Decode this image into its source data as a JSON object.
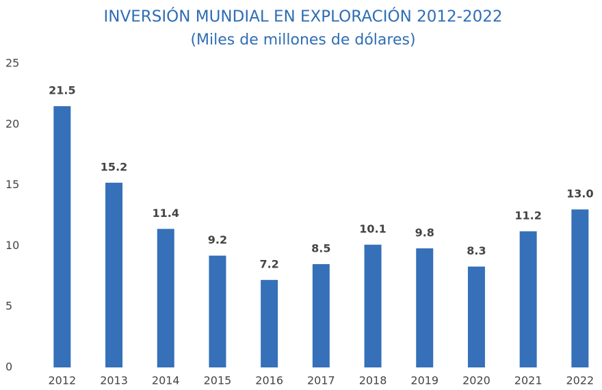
{
  "chart_data": {
    "type": "bar",
    "title": "INVERSIÓN MUNDIAL EN EXPLORACIÓN 2012-2022",
    "subtitle": "(Miles de millones de dólares)",
    "categories": [
      "2012",
      "2013",
      "2014",
      "2015",
      "2016",
      "2017",
      "2018",
      "2019",
      "2020",
      "2021",
      "2022"
    ],
    "values": [
      21.5,
      15.2,
      11.4,
      9.2,
      7.2,
      8.5,
      10.1,
      9.8,
      8.3,
      11.2,
      13.0
    ],
    "value_labels": [
      "21.5",
      "15.2",
      "11.4",
      "9.2",
      "7.2",
      "8.5",
      "10.1",
      "9.8",
      "8.3",
      "11.2",
      "13.0"
    ],
    "color": "#3570b8",
    "ylim": [
      0,
      25
    ],
    "yticks": [
      0,
      5,
      10,
      15,
      20,
      25
    ],
    "grid": false
  }
}
